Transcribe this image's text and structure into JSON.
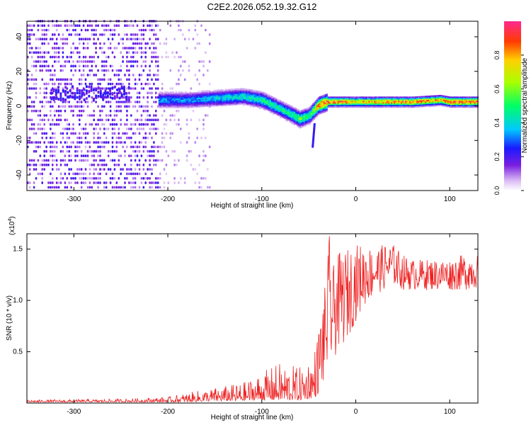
{
  "title": "C2E2.2026.052.19.32.G12",
  "chart_data": [
    {
      "type": "heatmap",
      "name": "spectrogram",
      "xlabel": "Height of straight line (km)",
      "ylabel": "Frequency (Hz)",
      "xlim": [
        -350,
        130
      ],
      "ylim": [
        -49,
        49
      ],
      "xticks": [
        -300,
        -200,
        -100,
        0,
        100
      ],
      "xtick_labels": [
        "-300",
        "-200",
        "-100",
        "0",
        "100"
      ],
      "yticks": [
        -40,
        -20,
        0,
        20,
        40
      ],
      "ytick_labels": [
        "-40",
        "-20",
        "0",
        "20",
        "40"
      ],
      "colorbar": {
        "label": "Normalized spectral amplitude",
        "range": [
          0,
          1
        ],
        "ticks": [
          0,
          0.2,
          0.4,
          0.6,
          0.8
        ],
        "tick_labels": [
          "0.0",
          "0.2",
          "0.4",
          "0.6",
          "0.8"
        ]
      },
      "ridge": {
        "description": "dominant frequency trace",
        "x": [
          -210,
          -180,
          -150,
          -120,
          -100,
          -85,
          -70,
          -60,
          -50,
          -45,
          -40,
          -30,
          -20,
          -10,
          0,
          20,
          40,
          60,
          90,
          100,
          130
        ],
        "y": [
          3,
          3,
          4,
          5,
          3,
          -1,
          -5,
          -8,
          -6,
          -3,
          0,
          2,
          2,
          2,
          2,
          2,
          2,
          2,
          3,
          2,
          2
        ],
        "amplitude": [
          0.35,
          0.35,
          0.4,
          0.45,
          0.5,
          0.5,
          0.5,
          0.6,
          0.55,
          0.7,
          0.9,
          0.95,
          0.95,
          0.9,
          0.8,
          0.85,
          0.9,
          0.9,
          0.85,
          0.95,
          0.95
        ]
      },
      "noise_region_x": [
        -350,
        -155
      ]
    },
    {
      "type": "line",
      "name": "snr",
      "xlabel": "Height of straight line (km)",
      "ylabel": "SNR (10 * v/v)",
      "y_multiplier": "(x10",
      "y_multiplier_exp": "4",
      "y_multiplier_close": ")",
      "xlim": [
        -350,
        130
      ],
      "ylim": [
        0,
        1.65
      ],
      "xticks": [
        -300,
        -200,
        -100,
        0,
        100
      ],
      "xtick_labels": [
        "-300",
        "-200",
        "-100",
        "0",
        "100"
      ],
      "yticks": [
        0.5,
        1.0,
        1.5
      ],
      "ytick_labels": [
        "0.5",
        "1.0",
        "1.5"
      ],
      "series_color": "#ee2222",
      "envelope": {
        "x": [
          -350,
          -250,
          -200,
          -180,
          -150,
          -120,
          -100,
          -80,
          -60,
          -45,
          -38,
          -32,
          -28,
          -25,
          -20,
          -10,
          0,
          10,
          20,
          30,
          40,
          50,
          60,
          80,
          100,
          115,
          130
        ],
        "lo": [
          0.01,
          0.01,
          0.01,
          0.01,
          0.02,
          0.02,
          0.03,
          0.03,
          0.03,
          0.05,
          0.1,
          0.2,
          0.35,
          0.35,
          0.5,
          0.6,
          0.8,
          0.95,
          1.05,
          1.1,
          1.15,
          1.1,
          1.1,
          1.1,
          1.1,
          1.1,
          1.12
        ],
        "hi": [
          0.03,
          0.04,
          0.06,
          0.1,
          0.15,
          0.2,
          0.3,
          0.4,
          0.35,
          0.5,
          0.8,
          1.2,
          1.65,
          1.3,
          1.45,
          1.5,
          1.55,
          1.55,
          1.5,
          1.55,
          1.55,
          1.45,
          1.4,
          1.4,
          1.4,
          1.45,
          1.45
        ]
      }
    }
  ]
}
